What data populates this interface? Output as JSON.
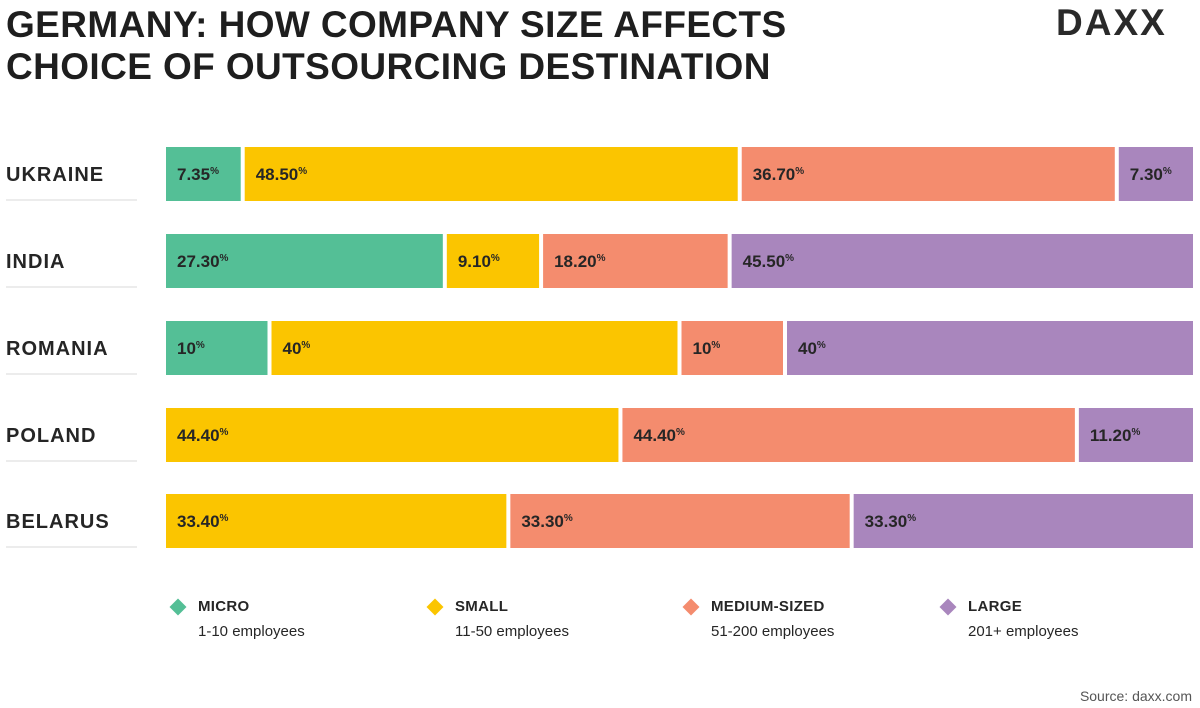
{
  "title": {
    "line1": "GERMANY: HOW COMPANY SIZE AFFECTS",
    "line2": "CHOICE OF OUTSOURCING DESTINATION"
  },
  "logo": {
    "text": "DAXX"
  },
  "chart_data": {
    "type": "bar",
    "orientation": "horizontal",
    "stacked": true,
    "normalized": true,
    "title": "GERMANY: HOW COMPANY SIZE AFFECTS CHOICE OF OUTSOURCING DESTINATION",
    "categories": [
      "UKRAINE",
      "INDIA",
      "ROMANIA",
      "POLAND",
      "BELARUS"
    ],
    "series": [
      {
        "name": "MICRO",
        "description": "1-10 employees",
        "color": "#54bf96",
        "values": [
          7.35,
          27.3,
          10,
          0,
          0
        ],
        "labels": [
          "7.35",
          "27.30",
          "10",
          "",
          ""
        ]
      },
      {
        "name": "SMALL",
        "description": "11-50 employees",
        "color": "#fbc500",
        "values": [
          48.5,
          9.1,
          40,
          44.4,
          33.4
        ],
        "labels": [
          "48.50",
          "9.10",
          "40",
          "44.40",
          "33.40"
        ]
      },
      {
        "name": "MEDIUM-SIZED",
        "description": "51-200 employees",
        "color": "#f48c6e",
        "values": [
          36.7,
          18.2,
          10,
          44.4,
          33.3
        ],
        "labels": [
          "36.70",
          "18.20",
          "10",
          "44.40",
          "33.30"
        ]
      },
      {
        "name": "LARGE",
        "description": "201+ employees",
        "color": "#a986bd",
        "values": [
          7.3,
          45.5,
          40,
          11.2,
          33.3
        ],
        "labels": [
          "7.30",
          "45.50",
          "40",
          "11.20",
          "33.30"
        ]
      }
    ],
    "unit": "%",
    "legend_position": "bottom"
  },
  "source": "Source: daxx.com"
}
